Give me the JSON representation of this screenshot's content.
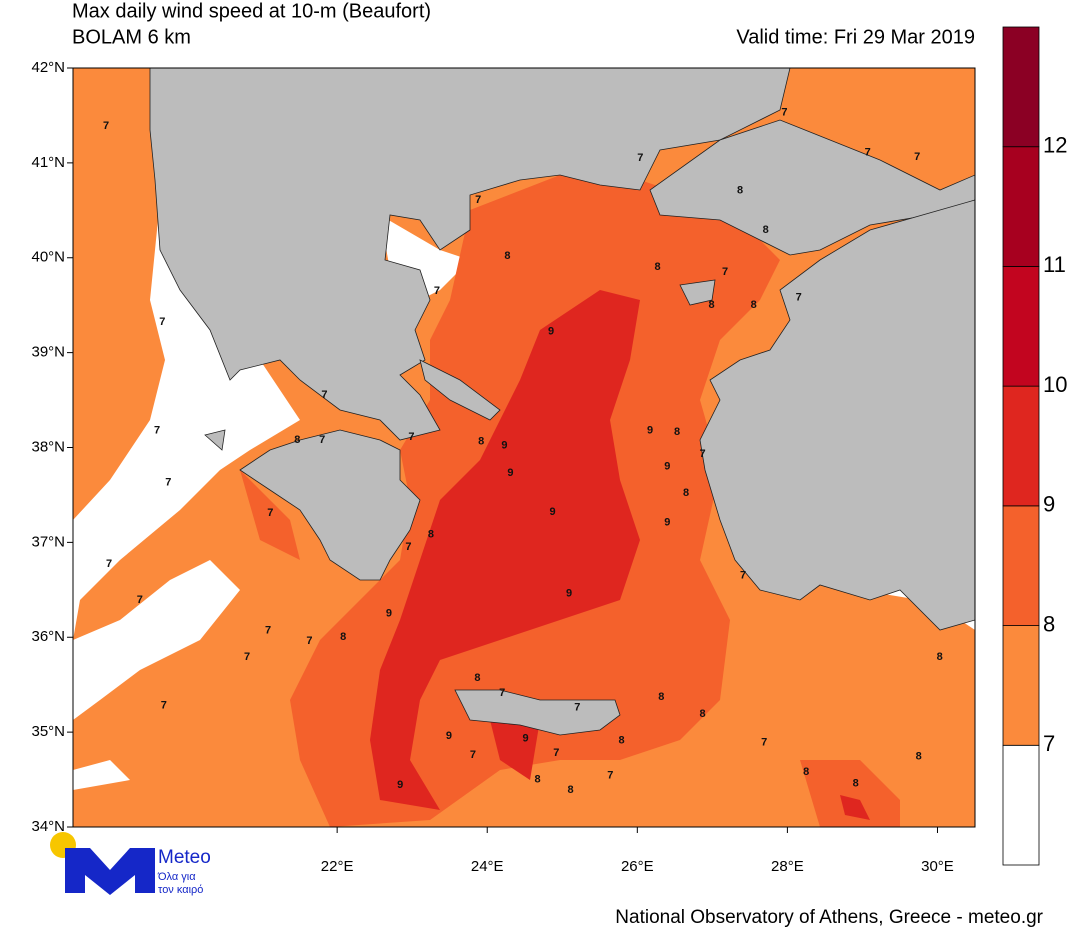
{
  "header": {
    "title": "Max daily wind speed at 10-m (Beaufort)",
    "model": "BOLAM 6 km",
    "valid_time": "Valid time: Fri 29 Mar 2019"
  },
  "map": {
    "lon_range": [
      18.48,
      30.5
    ],
    "lat_range": [
      34,
      42
    ],
    "lat_ticks": [
      {
        "value": 34,
        "label": "34°N"
      },
      {
        "value": 35,
        "label": "35°N"
      },
      {
        "value": 36,
        "label": "36°N"
      },
      {
        "value": 37,
        "label": "37°N"
      },
      {
        "value": 38,
        "label": "38°N"
      },
      {
        "value": 39,
        "label": "39°N"
      },
      {
        "value": 40,
        "label": "40°N"
      },
      {
        "value": 41,
        "label": "41°N"
      },
      {
        "value": 42,
        "label": "42°N"
      }
    ],
    "lon_ticks": [
      {
        "value": 22,
        "label": "22°E"
      },
      {
        "value": 24,
        "label": "24°E"
      },
      {
        "value": 26,
        "label": "26°E"
      },
      {
        "value": 28,
        "label": "28°E"
      },
      {
        "value": 30,
        "label": "30°E"
      }
    ],
    "contour_labels": [
      {
        "lon": 18.92,
        "lat": 41.39,
        "value": 7
      },
      {
        "lon": 26.04,
        "lat": 41.05,
        "value": 7
      },
      {
        "lon": 23.88,
        "lat": 40.61,
        "value": 7
      },
      {
        "lon": 24.27,
        "lat": 40.02,
        "value": 8
      },
      {
        "lon": 23.33,
        "lat": 39.65,
        "value": 7
      },
      {
        "lon": 24.85,
        "lat": 39.22,
        "value": 9
      },
      {
        "lon": 26.27,
        "lat": 39.9,
        "value": 8
      },
      {
        "lon": 27.17,
        "lat": 39.85,
        "value": 7
      },
      {
        "lon": 26.99,
        "lat": 39.5,
        "value": 8
      },
      {
        "lon": 27.55,
        "lat": 39.5,
        "value": 8
      },
      {
        "lon": 28.15,
        "lat": 39.58,
        "value": 7
      },
      {
        "lon": 27.37,
        "lat": 40.71,
        "value": 8
      },
      {
        "lon": 27.71,
        "lat": 40.29,
        "value": 8
      },
      {
        "lon": 27.96,
        "lat": 41.53,
        "value": 7
      },
      {
        "lon": 29.07,
        "lat": 41.11,
        "value": 7
      },
      {
        "lon": 29.73,
        "lat": 41.06,
        "value": 7
      },
      {
        "lon": 19.67,
        "lat": 39.32,
        "value": 7
      },
      {
        "lon": 19.6,
        "lat": 38.18,
        "value": 7
      },
      {
        "lon": 19.75,
        "lat": 37.63,
        "value": 7
      },
      {
        "lon": 21.83,
        "lat": 38.55,
        "value": 7
      },
      {
        "lon": 21.47,
        "lat": 38.08,
        "value": 8
      },
      {
        "lon": 21.8,
        "lat": 38.08,
        "value": 7
      },
      {
        "lon": 21.11,
        "lat": 37.31,
        "value": 7
      },
      {
        "lon": 22.99,
        "lat": 38.11,
        "value": 7
      },
      {
        "lon": 23.25,
        "lat": 37.08,
        "value": 8
      },
      {
        "lon": 22.95,
        "lat": 36.95,
        "value": 7
      },
      {
        "lon": 23.92,
        "lat": 38.06,
        "value": 8
      },
      {
        "lon": 24.23,
        "lat": 38.02,
        "value": 9
      },
      {
        "lon": 24.31,
        "lat": 37.73,
        "value": 9
      },
      {
        "lon": 26.17,
        "lat": 38.18,
        "value": 9
      },
      {
        "lon": 26.53,
        "lat": 38.16,
        "value": 8
      },
      {
        "lon": 26.4,
        "lat": 37.8,
        "value": 9
      },
      {
        "lon": 26.87,
        "lat": 37.93,
        "value": 7
      },
      {
        "lon": 26.65,
        "lat": 37.52,
        "value": 8
      },
      {
        "lon": 26.4,
        "lat": 37.21,
        "value": 9
      },
      {
        "lon": 24.87,
        "lat": 37.32,
        "value": 9
      },
      {
        "lon": 25.09,
        "lat": 36.46,
        "value": 9
      },
      {
        "lon": 27.41,
        "lat": 36.65,
        "value": 7
      },
      {
        "lon": 22.69,
        "lat": 36.25,
        "value": 9
      },
      {
        "lon": 22.08,
        "lat": 36.0,
        "value": 8
      },
      {
        "lon": 21.08,
        "lat": 36.07,
        "value": 7
      },
      {
        "lon": 21.63,
        "lat": 35.96,
        "value": 7
      },
      {
        "lon": 20.8,
        "lat": 35.79,
        "value": 7
      },
      {
        "lon": 19.37,
        "lat": 36.39,
        "value": 7
      },
      {
        "lon": 18.96,
        "lat": 36.77,
        "value": 7
      },
      {
        "lon": 19.69,
        "lat": 35.28,
        "value": 7
      },
      {
        "lon": 23.87,
        "lat": 35.57,
        "value": 8
      },
      {
        "lon": 24.2,
        "lat": 35.41,
        "value": 7
      },
      {
        "lon": 25.2,
        "lat": 35.26,
        "value": 7
      },
      {
        "lon": 26.32,
        "lat": 35.37,
        "value": 8
      },
      {
        "lon": 26.87,
        "lat": 35.19,
        "value": 8
      },
      {
        "lon": 23.49,
        "lat": 34.96,
        "value": 9
      },
      {
        "lon": 23.81,
        "lat": 34.76,
        "value": 7
      },
      {
        "lon": 24.51,
        "lat": 34.93,
        "value": 9
      },
      {
        "lon": 24.92,
        "lat": 34.78,
        "value": 7
      },
      {
        "lon": 25.79,
        "lat": 34.91,
        "value": 8
      },
      {
        "lon": 24.67,
        "lat": 34.5,
        "value": 8
      },
      {
        "lon": 25.11,
        "lat": 34.39,
        "value": 8
      },
      {
        "lon": 25.64,
        "lat": 34.54,
        "value": 7
      },
      {
        "lon": 22.84,
        "lat": 34.44,
        "value": 9
      },
      {
        "lon": 27.69,
        "lat": 34.89,
        "value": 7
      },
      {
        "lon": 28.25,
        "lat": 34.58,
        "value": 8
      },
      {
        "lon": 28.91,
        "lat": 34.46,
        "value": 8
      },
      {
        "lon": 29.75,
        "lat": 34.74,
        "value": 8
      },
      {
        "lon": 30.03,
        "lat": 35.79,
        "value": 8
      }
    ]
  },
  "colorbar": {
    "levels": [
      7,
      8,
      9,
      10,
      11,
      12
    ],
    "colors": [
      "#ffffff",
      "#fb8a3c",
      "#f4612c",
      "#df261f",
      "#c2051f",
      "#a7001f",
      "#8b0024"
    ]
  },
  "logo": {
    "name": "Meteo",
    "tagline": [
      "Όλα για",
      "τον καιρό"
    ]
  },
  "footer": "National Observatory of Athens, Greece - meteo.gr"
}
